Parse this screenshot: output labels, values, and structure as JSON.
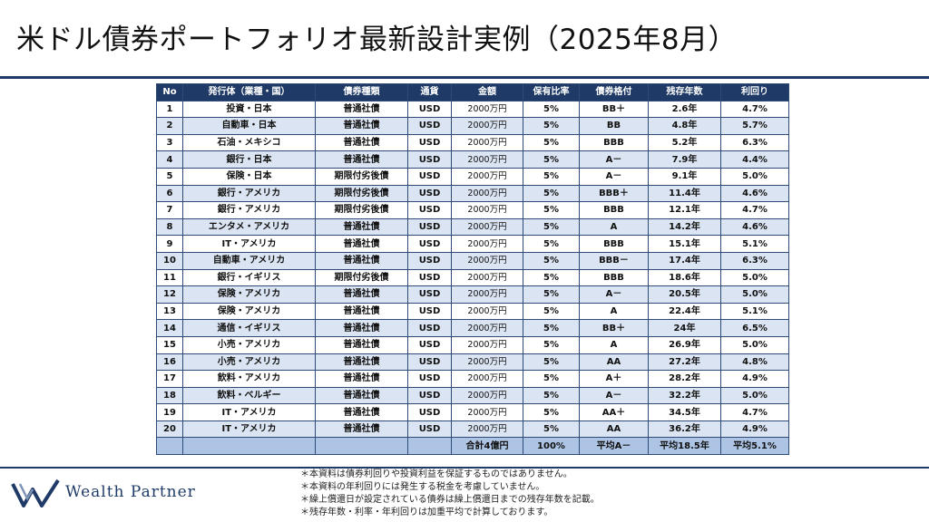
{
  "title": "米ドル債券ポートフォリオ最新設計実例（2025年8月）",
  "table": {
    "headers": [
      "No",
      "発行体（業種・国）",
      "債券種類",
      "通貨",
      "金額",
      "保有比率",
      "債券格付",
      "残存年数",
      "利回り"
    ],
    "rows": [
      [
        "1",
        "投資・日本",
        "普通社債",
        "USD",
        "2000万円",
        "5%",
        "BB＋",
        "2.6年",
        "4.7%"
      ],
      [
        "2",
        "自動車・日本",
        "普通社債",
        "USD",
        "2000万円",
        "5%",
        "BB",
        "4.8年",
        "5.7%"
      ],
      [
        "3",
        "石油・メキシコ",
        "普通社債",
        "USD",
        "2000万円",
        "5%",
        "BBB",
        "5.2年",
        "6.3%"
      ],
      [
        "4",
        "銀行・日本",
        "普通社債",
        "USD",
        "2000万円",
        "5%",
        "A－",
        "7.9年",
        "4.4%"
      ],
      [
        "5",
        "保険・日本",
        "期限付劣後債",
        "USD",
        "2000万円",
        "5%",
        "A－",
        "9.1年",
        "5.0%"
      ],
      [
        "6",
        "銀行・アメリカ",
        "期限付劣後債",
        "USD",
        "2000万円",
        "5%",
        "BBB＋",
        "11.4年",
        "4.6%"
      ],
      [
        "7",
        "銀行・アメリカ",
        "期限付劣後債",
        "USD",
        "2000万円",
        "5%",
        "BBB",
        "12.1年",
        "4.7%"
      ],
      [
        "8",
        "エンタメ・アメリカ",
        "普通社債",
        "USD",
        "2000万円",
        "5%",
        "A",
        "14.2年",
        "4.6%"
      ],
      [
        "9",
        "IT・アメリカ",
        "普通社債",
        "USD",
        "2000万円",
        "5%",
        "BBB",
        "15.1年",
        "5.1%"
      ],
      [
        "10",
        "自動車・アメリカ",
        "普通社債",
        "USD",
        "2000万円",
        "5%",
        "BBB－",
        "17.4年",
        "6.3%"
      ],
      [
        "11",
        "銀行・イギリス",
        "期限付劣後債",
        "USD",
        "2000万円",
        "5%",
        "BBB",
        "18.6年",
        "5.0%"
      ],
      [
        "12",
        "保険・アメリカ",
        "普通社債",
        "USD",
        "2000万円",
        "5%",
        "A－",
        "20.5年",
        "5.0%"
      ],
      [
        "13",
        "保険・アメリカ",
        "普通社債",
        "USD",
        "2000万円",
        "5%",
        "A",
        "22.4年",
        "5.1%"
      ],
      [
        "14",
        "通信・イギリス",
        "普通社債",
        "USD",
        "2000万円",
        "5%",
        "BB＋",
        "24年",
        "6.5%"
      ],
      [
        "15",
        "小売・アメリカ",
        "普通社債",
        "USD",
        "2000万円",
        "5%",
        "A",
        "26.9年",
        "5.0%"
      ],
      [
        "16",
        "小売・アメリカ",
        "普通社債",
        "USD",
        "2000万円",
        "5%",
        "AA",
        "27.2年",
        "4.8%"
      ],
      [
        "17",
        "飲料・アメリカ",
        "普通社債",
        "USD",
        "2000万円",
        "5%",
        "A＋",
        "28.2年",
        "4.9%"
      ],
      [
        "18",
        "飲料・ベルギー",
        "普通社債",
        "USD",
        "2000万円",
        "5%",
        "A－",
        "32.2年",
        "5.0%"
      ],
      [
        "19",
        "IT・アメリカ",
        "普通社債",
        "USD",
        "2000万円",
        "5%",
        "AA＋",
        "34.5年",
        "4.7%"
      ],
      [
        "20",
        "IT・アメリカ",
        "普通社債",
        "USD",
        "2000万円",
        "5%",
        "AA",
        "36.2年",
        "4.9%"
      ]
    ],
    "totals": [
      "",
      "",
      "",
      "",
      "合計4億円",
      "100%",
      "平均A－",
      "平均18.5年",
      "平均5.1%"
    ]
  },
  "brand": {
    "name": "Wealth Partner",
    "logo_icon": "w-logo-icon",
    "color": "#1f3a66"
  },
  "notes": [
    "＊本資料は債券利回りや投資利益を保証するものではありません。",
    "＊本資料の年利回りには発生する税金を考慮していません。",
    "＊繰上償還日が設定されている債券は繰上償還日までの残存年数を記載。",
    "＊残存年数・利率・年利回りは加重平均で計算しております。"
  ]
}
